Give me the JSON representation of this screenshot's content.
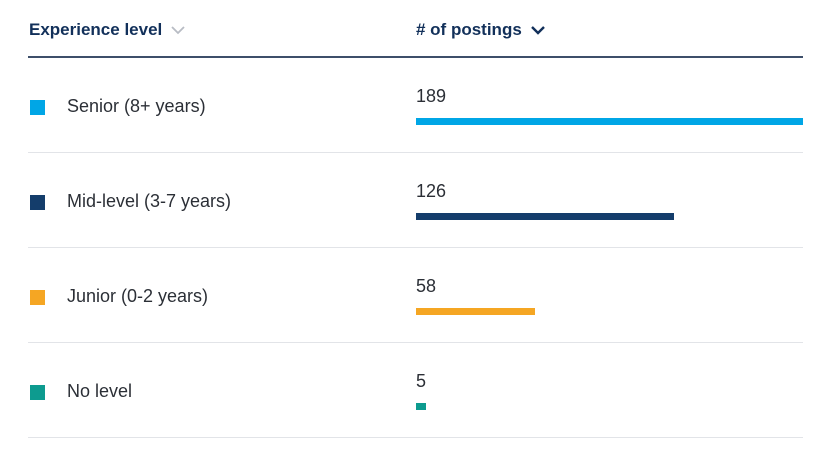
{
  "header": {
    "level_label": "Experience level",
    "count_label": "# of postings"
  },
  "max_value": 189,
  "rows": [
    {
      "label": "Senior (8+ years)",
      "value": "189",
      "count": 189,
      "color": "#00a6e6"
    },
    {
      "label": "Mid-level (3-7 years)",
      "value": "126",
      "count": 126,
      "color": "#143d6b"
    },
    {
      "label": "Junior (0-2 years)",
      "value": "58",
      "count": 58,
      "color": "#f5a623"
    },
    {
      "label": "No level",
      "value": "5",
      "count": 5,
      "color": "#0d9b8f"
    }
  ]
}
